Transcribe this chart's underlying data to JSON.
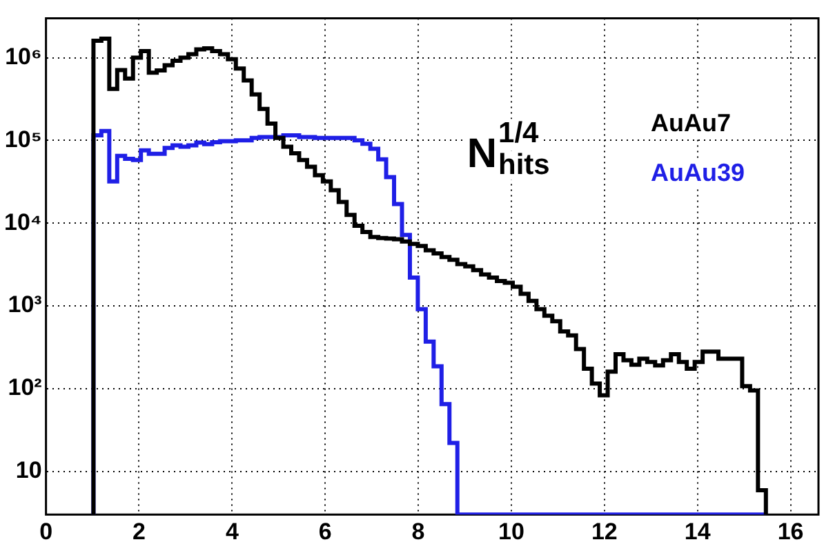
{
  "chart_data": {
    "type": "histogram",
    "bins": [
      1.02,
      1.19,
      1.36,
      1.53,
      1.7,
      1.87,
      2.04,
      2.21,
      2.38,
      2.55,
      2.72,
      2.89,
      3.06,
      3.23,
      3.4,
      3.57,
      3.74,
      3.91,
      4.08,
      4.25,
      4.42,
      4.59,
      4.76,
      4.93,
      5.1,
      5.27,
      5.44,
      5.61,
      5.78,
      5.95,
      6.12,
      6.29,
      6.46,
      6.63,
      6.8,
      6.97,
      7.14,
      7.31,
      7.48,
      7.65,
      7.82,
      7.99,
      8.16,
      8.33,
      8.5,
      8.67,
      8.84,
      9.01,
      9.18,
      9.35,
      9.52,
      9.69,
      9.86,
      10.03,
      10.2,
      10.37,
      10.54,
      10.71,
      10.88,
      11.05,
      11.22,
      11.39,
      11.56,
      11.73,
      11.9,
      12.07,
      12.24,
      12.41,
      12.58,
      12.75,
      12.92,
      13.09,
      13.26,
      13.43,
      13.6,
      13.77,
      13.94,
      14.11,
      14.28,
      14.45,
      14.62,
      14.79,
      14.96,
      15.13,
      15.3,
      15.47
    ],
    "series": [
      {
        "name": "AuAu7",
        "color": "#000000",
        "values": [
          1600000,
          1700000,
          420000,
          710000,
          560000,
          1000000,
          1200000,
          660000,
          700000,
          810000,
          920000,
          1000000,
          1100000,
          1260000,
          1300000,
          1200000,
          1100000,
          960000,
          740000,
          530000,
          360000,
          240000,
          160000,
          107000,
          84000,
          70000,
          58000,
          48000,
          38000,
          32000,
          25000,
          18000,
          12600,
          9300,
          7800,
          6800,
          6600,
          6500,
          6400,
          6000,
          5600,
          5300,
          4700,
          4300,
          3900,
          3600,
          3200,
          3000,
          2700,
          2400,
          2200,
          2000,
          1900,
          1700,
          1400,
          1150,
          910,
          760,
          650,
          490,
          440,
          300,
          174,
          115,
          83,
          160,
          260,
          220,
          194,
          230,
          210,
          190,
          220,
          260,
          210,
          174,
          210,
          280,
          280,
          230,
          230,
          230,
          107,
          95,
          5.9
        ]
      },
      {
        "name": "AuAu39",
        "color": "#1f1fe6",
        "values": [
          115000,
          130000,
          32000,
          65000,
          60000,
          58000,
          76000,
          69000,
          69000,
          81000,
          87000,
          84000,
          87000,
          94000,
          90000,
          95000,
          98000,
          98000,
          100000,
          100000,
          107000,
          110000,
          110000,
          110000,
          115000,
          115000,
          110000,
          110000,
          107000,
          107000,
          107000,
          107000,
          107000,
          100000,
          91000,
          79000,
          59000,
          36000,
          17000,
          7200,
          2200,
          910,
          370,
          186,
          65,
          22,
          null,
          null,
          null,
          null,
          null,
          null,
          null,
          null,
          null,
          null,
          null,
          null,
          null,
          null,
          null,
          null,
          null,
          null,
          null,
          null,
          null,
          null,
          null,
          null,
          null,
          null,
          null,
          null,
          null,
          null,
          null,
          null,
          null,
          null,
          null,
          null,
          null,
          null,
          null
        ]
      }
    ],
    "log": "y",
    "xlim": [
      0,
      16.6
    ],
    "xticks": [
      0,
      2,
      4,
      6,
      8,
      10,
      12,
      14,
      16
    ],
    "ylim": [
      3,
      3000000
    ],
    "yticks": [
      10,
      {
        "value": 100,
        "label": "10²"
      },
      {
        "value": 1000,
        "label": "10³"
      },
      {
        "value": 10000,
        "label": "10⁴"
      },
      {
        "value": 100000,
        "label": "10⁵"
      },
      {
        "value": 1000000,
        "label": "10⁶"
      }
    ],
    "grid": true,
    "annotations": [
      "N$_{hits}$$^{1/4}$"
    ]
  }
}
